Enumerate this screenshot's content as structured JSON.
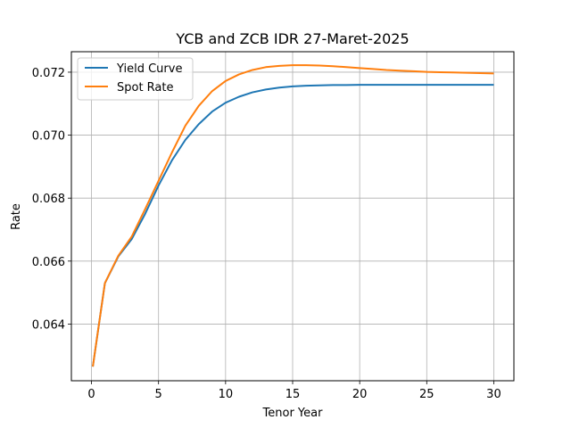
{
  "chart_data": {
    "type": "line",
    "title": "YCB and ZCB IDR 27-Maret-2025",
    "xlabel": "Tenor Year",
    "ylabel": "Rate",
    "xlim": [
      -1.5,
      31.5
    ],
    "ylim": [
      0.0622,
      0.07265
    ],
    "xticks": [
      0,
      5,
      10,
      15,
      20,
      25,
      30
    ],
    "xtick_labels": [
      "0",
      "5",
      "10",
      "15",
      "20",
      "25",
      "30"
    ],
    "yticks": [
      0.064,
      0.066,
      0.068,
      0.07,
      0.072
    ],
    "ytick_labels": [
      "0.064",
      "0.066",
      "0.068",
      "0.070",
      "0.072"
    ],
    "grid": true,
    "legend_position": "top-left",
    "x": [
      0.1,
      1,
      2,
      3,
      4,
      5,
      6,
      7,
      8,
      9,
      10,
      11,
      12,
      13,
      14,
      15,
      16,
      17,
      18,
      19,
      20,
      21,
      22,
      23,
      24,
      25,
      26,
      27,
      28,
      29,
      30
    ],
    "series": [
      {
        "name": "Yield Curve",
        "color": "#1f77b4",
        "values": [
          0.06265,
          0.0653,
          0.06615,
          0.0667,
          0.0675,
          0.0684,
          0.0692,
          0.06985,
          0.07035,
          0.07075,
          0.07103,
          0.07122,
          0.07136,
          0.07145,
          0.07151,
          0.07155,
          0.07157,
          0.07158,
          0.07159,
          0.07159,
          0.0716,
          0.0716,
          0.0716,
          0.0716,
          0.0716,
          0.0716,
          0.0716,
          0.0716,
          0.0716,
          0.0716,
          0.0716
        ]
      },
      {
        "name": "Spot Rate",
        "color": "#ff7f0e",
        "values": [
          0.06265,
          0.0653,
          0.06617,
          0.06678,
          0.06765,
          0.06855,
          0.06945,
          0.0703,
          0.07093,
          0.0714,
          0.07172,
          0.07193,
          0.07207,
          0.07216,
          0.0722,
          0.07222,
          0.07222,
          0.07221,
          0.07219,
          0.07216,
          0.07213,
          0.0721,
          0.07207,
          0.07205,
          0.07203,
          0.07201,
          0.072,
          0.07199,
          0.07198,
          0.07197,
          0.07196
        ]
      }
    ]
  }
}
